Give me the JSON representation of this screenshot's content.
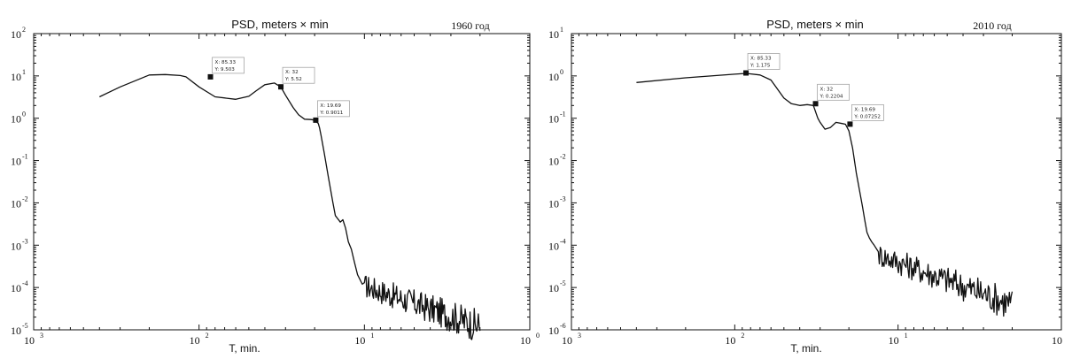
{
  "chart_data": [
    {
      "type": "line",
      "title": "PSD,  meters × min",
      "year_label": "1960 год",
      "xlabel": "T, min.",
      "ylabel": "",
      "xscale": "log-reversed",
      "yscale": "log",
      "xlim": [
        1000,
        1
      ],
      "ylim": [
        1e-05,
        100
      ],
      "x_ticks": [
        {
          "base": "10",
          "exp": "3"
        },
        {
          "base": "10",
          "exp": "2"
        },
        {
          "base": "10",
          "exp": "1"
        },
        {
          "base": "10",
          "exp": "0"
        }
      ],
      "y_ticks": [
        {
          "base": "10",
          "exp": "-5"
        },
        {
          "base": "10",
          "exp": "-4"
        },
        {
          "base": "10",
          "exp": "-3"
        },
        {
          "base": "10",
          "exp": "-2"
        },
        {
          "base": "10",
          "exp": "-1"
        },
        {
          "base": "10",
          "exp": "0"
        },
        {
          "base": "10",
          "exp": "1"
        },
        {
          "base": "10",
          "exp": "2"
        }
      ],
      "series": [
        {
          "x": [
            400,
            300,
            200,
            160,
            130,
            120,
            100,
            80,
            60,
            50,
            45,
            40,
            35,
            32,
            30,
            27,
            25,
            23,
            21,
            20,
            19,
            18.7,
            18.3,
            17.5,
            16.5,
            15.5,
            15,
            14,
            13.5,
            13,
            12.5,
            12,
            11.5,
            11,
            10.6,
            10.3,
            10
          ],
          "y": [
            3.2,
            5.5,
            10.5,
            10.8,
            10.2,
            9.5,
            5.5,
            3.2,
            2.8,
            3.3,
            4.5,
            6.2,
            6.8,
            5.5,
            3.5,
            1.8,
            1.2,
            0.95,
            0.93,
            0.9,
            0.75,
            0.6,
            0.4,
            0.15,
            0.04,
            0.01,
            0.005,
            0.0035,
            0.004,
            0.0025,
            0.0012,
            0.0008,
            0.0004,
            0.0002,
            0.00015,
            0.00012,
            0.00013
          ],
          "noise_tail": {
            "x_from": 10,
            "x_to": 2,
            "y_from": 0.00011,
            "y_to": 1.2e-05
          }
        }
      ],
      "annotations": [
        {
          "x_label": "X: 85.33",
          "y_label": "Y: 9.503",
          "x": 85.33,
          "y": 9.503
        },
        {
          "x_label": "X: 32",
          "y_label": "Y: 5.52",
          "x": 32,
          "y": 5.52
        },
        {
          "x_label": "X: 19.69",
          "y_label": "Y: 0.9011",
          "x": 19.69,
          "y": 0.9011
        }
      ]
    },
    {
      "type": "line",
      "title": "PSD,  meters × min",
      "year_label": "2010 год",
      "xlabel": "T, min.",
      "ylabel": "",
      "xscale": "log-reversed",
      "yscale": "log",
      "xlim": [
        1000,
        1
      ],
      "ylim": [
        1e-06,
        10
      ],
      "x_ticks": [
        {
          "base": "10",
          "exp": "3"
        },
        {
          "base": "10",
          "exp": "2"
        },
        {
          "base": "10",
          "exp": "1"
        },
        {
          "base": "10",
          "exp": ""
        }
      ],
      "y_ticks": [
        {
          "base": "10",
          "exp": "-6"
        },
        {
          "base": "10",
          "exp": "-5"
        },
        {
          "base": "10",
          "exp": "-4"
        },
        {
          "base": "10",
          "exp": "-3"
        },
        {
          "base": "10",
          "exp": "-2"
        },
        {
          "base": "10",
          "exp": "-1"
        },
        {
          "base": "10",
          "exp": "0"
        },
        {
          "base": "10",
          "exp": "1"
        }
      ],
      "series": [
        {
          "x": [
            400,
            200,
            100,
            85,
            70,
            60,
            55,
            50,
            45,
            40,
            36,
            33,
            31,
            30,
            28,
            26,
            24,
            22,
            21,
            20,
            19,
            18,
            17,
            16.5,
            16,
            15.5,
            15,
            14.5,
            14,
            13.5,
            13.2
          ],
          "y": [
            0.7,
            0.9,
            1.1,
            1.15,
            1.05,
            0.8,
            0.5,
            0.3,
            0.22,
            0.2,
            0.21,
            0.2,
            0.1,
            0.08,
            0.055,
            0.06,
            0.08,
            0.075,
            0.072,
            0.05,
            0.02,
            0.005,
            0.0015,
            0.0008,
            0.0004,
            0.0002,
            0.00015,
            0.00012,
            0.0001,
            8e-05,
            7e-05
          ],
          "noise_tail": {
            "x_from": 13.2,
            "x_to": 2,
            "y_from": 6e-05,
            "y_to": 4e-06
          }
        }
      ],
      "annotations": [
        {
          "x_label": "X: 85.33",
          "y_label": "Y: 1.175",
          "x": 85.33,
          "y": 1.175
        },
        {
          "x_label": "X: 32",
          "y_label": "Y: 0.2204",
          "x": 32,
          "y": 0.2204
        },
        {
          "x_label": "X: 19.69",
          "y_label": "Y: 0.07252",
          "x": 19.69,
          "y": 0.07252
        }
      ]
    }
  ]
}
